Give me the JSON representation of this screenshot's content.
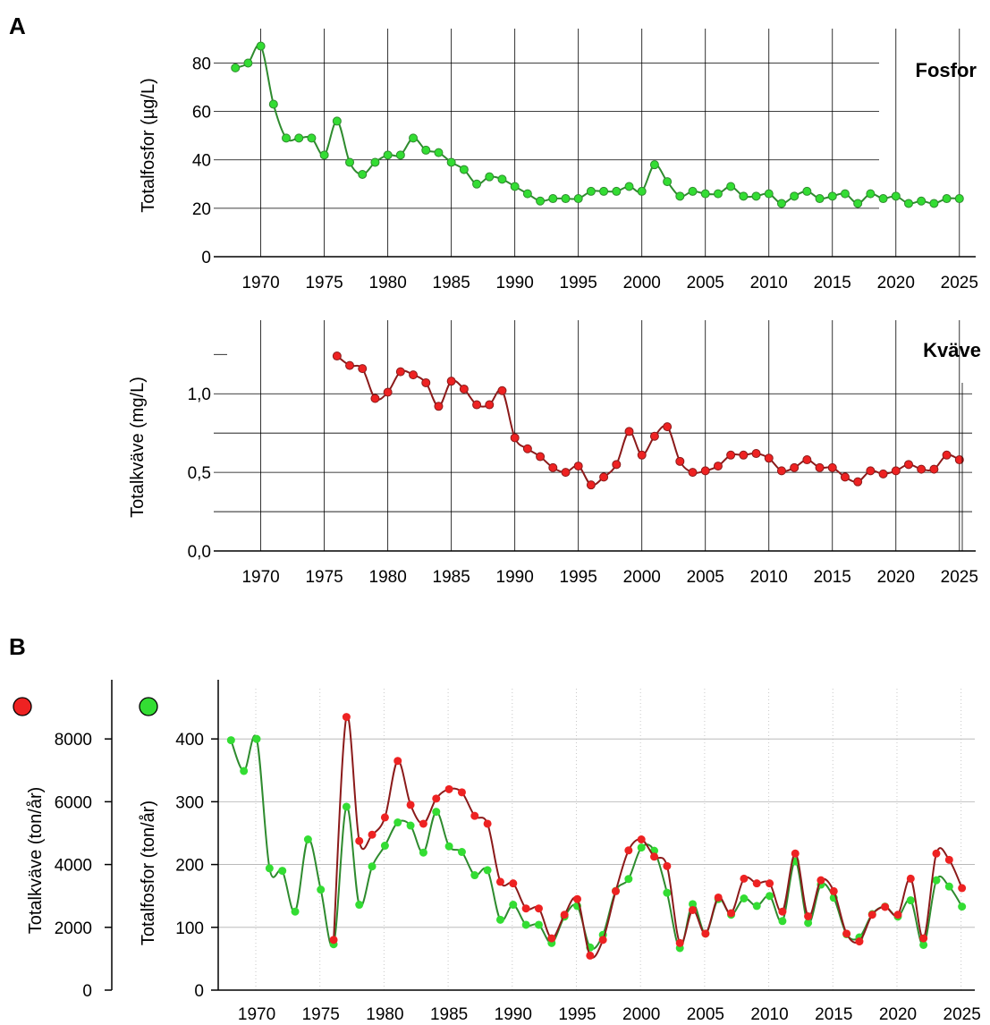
{
  "panels": {
    "a": "A",
    "b": "B"
  },
  "chart_data": [
    {
      "type": "line",
      "panel": "A",
      "title": "Fosfor",
      "ylabel": "Totalfosfor (µg/L)",
      "xlim": [
        1967,
        2026
      ],
      "ylim": [
        0,
        92
      ],
      "yticks": [
        0,
        20,
        40,
        60,
        80
      ],
      "ytick_labels": [
        "0",
        "20",
        "40",
        "60",
        "80"
      ],
      "xticks": [
        1970,
        1975,
        1980,
        1985,
        1990,
        1995,
        2000,
        2005,
        2010,
        2015,
        2020,
        2025
      ],
      "xtick_labels": [
        "1970",
        "1975",
        "1980",
        "1985",
        "1990",
        "1995",
        "2000",
        "2005",
        "2010",
        "2015",
        "2020",
        "2025"
      ],
      "grid": "x-major, y-major",
      "colors": {
        "line": "#2e8b2e",
        "marker": "#33dd33"
      },
      "x": [
        1968,
        1969,
        1970,
        1971,
        1972,
        1973,
        1974,
        1975,
        1976,
        1977,
        1978,
        1979,
        1980,
        1981,
        1982,
        1983,
        1984,
        1985,
        1986,
        1987,
        1988,
        1989,
        1990,
        1991,
        1992,
        1993,
        1994,
        1995,
        1996,
        1997,
        1998,
        1999,
        2000,
        2001,
        2002,
        2003,
        2004,
        2005,
        2006,
        2007,
        2008,
        2009,
        2010,
        2011,
        2012,
        2013,
        2014,
        2015,
        2016,
        2017,
        2018,
        2019,
        2020,
        2021,
        2022,
        2023,
        2024,
        2025
      ],
      "y": [
        78,
        80,
        87,
        63,
        49,
        49,
        49,
        42,
        56,
        39,
        34,
        39,
        42,
        42,
        49,
        44,
        43,
        39,
        36,
        30,
        33,
        32,
        29,
        26,
        23,
        24,
        24,
        24,
        27,
        27,
        27,
        29,
        27,
        38,
        31,
        25,
        27,
        26,
        26,
        29,
        25,
        25,
        26,
        22,
        25,
        27,
        24,
        25,
        26,
        22,
        26,
        24,
        25,
        22,
        23,
        22,
        24,
        24
      ]
    },
    {
      "type": "line",
      "panel": "A",
      "title": "Kväve",
      "ylabel": "Totalkväve (mg/L)",
      "xlim": [
        1967,
        2026
      ],
      "ylim": [
        0,
        1.32
      ],
      "yticks": [
        0,
        0.5,
        1.0
      ],
      "ytick_labels": [
        "0,0",
        "0,5",
        "1,0"
      ],
      "xticks": [
        1970,
        1975,
        1980,
        1985,
        1990,
        1995,
        2000,
        2005,
        2010,
        2015,
        2020,
        2025
      ],
      "xtick_labels": [
        "1970",
        "1975",
        "1980",
        "1985",
        "1990",
        "1995",
        "2000",
        "2005",
        "2010",
        "2015",
        "2020",
        "2025"
      ],
      "grid": "x-major, y-major",
      "colors": {
        "line": "#8b1a1a",
        "marker": "#ee2222"
      },
      "x": [
        1976,
        1977,
        1978,
        1979,
        1980,
        1981,
        1982,
        1983,
        1984,
        1985,
        1986,
        1987,
        1988,
        1989,
        1990,
        1991,
        1992,
        1993,
        1994,
        1995,
        1996,
        1997,
        1998,
        1999,
        2000,
        2001,
        2002,
        2003,
        2004,
        2005,
        2006,
        2007,
        2008,
        2009,
        2010,
        2011,
        2012,
        2013,
        2014,
        2015,
        2016,
        2017,
        2018,
        2019,
        2020,
        2021,
        2022,
        2023,
        2024,
        2025
      ],
      "y": [
        1.24,
        1.18,
        1.16,
        0.97,
        1.01,
        1.14,
        1.12,
        1.07,
        0.92,
        1.08,
        1.03,
        0.93,
        0.93,
        1.02,
        0.72,
        0.65,
        0.6,
        0.53,
        0.5,
        0.54,
        0.42,
        0.47,
        0.55,
        0.76,
        0.61,
        0.73,
        0.79,
        0.57,
        0.5,
        0.51,
        0.54,
        0.61,
        0.61,
        0.62,
        0.59,
        0.51,
        0.53,
        0.58,
        0.53,
        0.53,
        0.47,
        0.44,
        0.51,
        0.49,
        0.51,
        0.55,
        0.52,
        0.52,
        0.61,
        0.58
      ]
    },
    {
      "type": "line",
      "panel": "B",
      "xlim": [
        1967,
        2026
      ],
      "xticks": [
        1970,
        1975,
        1980,
        1985,
        1990,
        1995,
        2000,
        2005,
        2010,
        2015,
        2020,
        2025
      ],
      "xtick_labels": [
        "1970",
        "1975",
        "1980",
        "1985",
        "1990",
        "1995",
        "2000",
        "2005",
        "2010",
        "2015",
        "2020",
        "2025"
      ],
      "grid": "y-major, x-minor dotted",
      "left_axis": {
        "label": "Totalkväve (ton/år)",
        "ylim": [
          0,
          9600
        ],
        "ticks": [
          0,
          2000,
          4000,
          6000,
          8000
        ],
        "tick_labels": [
          "0",
          "2000",
          "4000",
          "6000",
          "8000"
        ],
        "marker_color": "#ee2222"
      },
      "right_axis": {
        "label": "Totalfosfor (ton/år)",
        "ylim": [
          0,
          480
        ],
        "ticks": [
          0,
          100,
          200,
          300,
          400
        ],
        "tick_labels": [
          "0",
          "100",
          "200",
          "300",
          "400"
        ],
        "marker_color": "#33dd33"
      },
      "series": [
        {
          "axis": "left",
          "colors": {
            "line": "#8b1a1a",
            "marker": "#ee2222"
          },
          "x": [
            1976,
            1977,
            1978,
            1979,
            1980,
            1981,
            1982,
            1983,
            1984,
            1985,
            1986,
            1987,
            1988,
            1989,
            1990,
            1991,
            1992,
            1993,
            1994,
            1995,
            1996,
            1997,
            1998,
            1999,
            2000,
            2001,
            2002,
            2003,
            2004,
            2005,
            2006,
            2007,
            2008,
            2009,
            2010,
            2011,
            2012,
            2013,
            2014,
            2015,
            2016,
            2017,
            2018,
            2019,
            2020,
            2021,
            2022,
            2023,
            2024,
            2025
          ],
          "y": [
            1600,
            8700,
            4750,
            4950,
            5500,
            7300,
            5900,
            5300,
            6100,
            6400,
            6300,
            5550,
            5300,
            3450,
            3400,
            2600,
            2600,
            1650,
            2400,
            2900,
            1100,
            1600,
            3150,
            4450,
            4800,
            4250,
            3950,
            1500,
            2550,
            1800,
            2950,
            2450,
            3550,
            3400,
            3400,
            2500,
            4350,
            2350,
            3500,
            3150,
            1800,
            1550,
            2400,
            2650,
            2400,
            3550,
            1650,
            4350,
            4150,
            3250
          ]
        },
        {
          "axis": "right",
          "colors": {
            "line": "#2e8b2e",
            "marker": "#33dd33"
          },
          "x": [
            1968,
            1969,
            1970,
            1971,
            1972,
            1973,
            1974,
            1975,
            1976,
            1977,
            1978,
            1979,
            1980,
            1981,
            1982,
            1983,
            1984,
            1985,
            1986,
            1987,
            1988,
            1989,
            1990,
            1991,
            1992,
            1993,
            1994,
            1995,
            1996,
            1997,
            1998,
            1999,
            2000,
            2001,
            2002,
            2003,
            2004,
            2005,
            2006,
            2007,
            2008,
            2009,
            2010,
            2011,
            2012,
            2013,
            2014,
            2015,
            2016,
            2017,
            2018,
            2019,
            2020,
            2021,
            2022,
            2023,
            2024,
            2025
          ],
          "y": [
            398,
            349,
            400,
            194,
            190,
            125,
            240,
            160,
            73,
            292,
            136,
            197,
            230,
            267,
            262,
            219,
            284,
            229,
            220,
            183,
            191,
            112,
            136,
            104,
            104,
            75,
            117,
            134,
            68,
            88,
            158,
            177,
            227,
            222,
            155,
            67,
            137,
            90,
            145,
            120,
            146,
            134,
            150,
            110,
            205,
            107,
            168,
            147,
            89,
            84,
            121,
            133,
            117,
            143,
            72,
            175,
            165,
            133
          ]
        }
      ]
    }
  ]
}
